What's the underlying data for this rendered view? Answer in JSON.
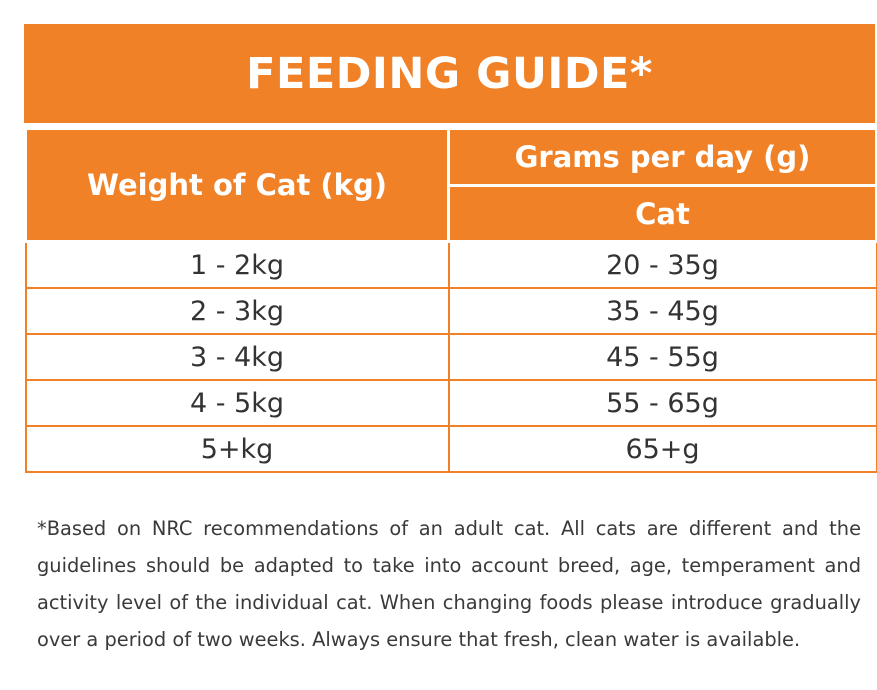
{
  "title": "FEEDING GUIDE*",
  "table": {
    "weight_header": "Weight of Cat (kg)",
    "grams_header": "Grams per day (g)",
    "cat_header": "Cat",
    "rows": [
      {
        "weight": "1 - 2kg",
        "grams": "20 - 35g"
      },
      {
        "weight": "2 - 3kg",
        "grams": "35 - 45g"
      },
      {
        "weight": "3 - 4kg",
        "grams": "45 - 55g"
      },
      {
        "weight": "4 - 5kg",
        "grams": "55 - 65g"
      },
      {
        "weight": "5+kg",
        "grams": "65+g"
      }
    ]
  },
  "footnote": "*Based on NRC recommendations of an adult cat. All cats are different and the guidelines should be adapted to take into account breed, age, temperament and activity level of the individual cat. When changing foods please introduce gradually over a period of two weeks. Always ensure that fresh, clean water is available.",
  "colors": {
    "accent": "#f08127",
    "text": "#333333"
  }
}
